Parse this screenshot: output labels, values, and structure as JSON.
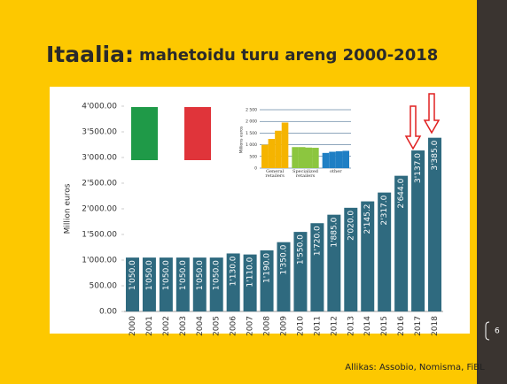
{
  "title_main": "Itaalia:",
  "title_rest": "mahetoidu turu areng 2000-2018",
  "source": "Allikas: Assobio, Nomisma, FiBL",
  "page_number": 6,
  "chart_data": [
    {
      "type": "bar",
      "y_axis_label": "Million euros",
      "categories": [
        "2000",
        "2001",
        "2002",
        "2003",
        "2004",
        "2005",
        "2006",
        "2007",
        "2008",
        "2009",
        "2010",
        "2011",
        "2012",
        "2013",
        "2014",
        "2015",
        "2016",
        "2017",
        "2018"
      ],
      "values": [
        1050,
        1050,
        1050,
        1050,
        1050,
        1050,
        1130,
        1110,
        1190,
        1350,
        1550,
        1720,
        1885,
        2020,
        2145.2,
        2317,
        2644,
        3137,
        3385
      ],
      "value_labels": [
        "1'050.0",
        "1'050.0",
        "1'050.0",
        "1'050.0",
        "1'050.0",
        "1'050.0",
        "1'130.0",
        "1'110.0",
        "1'190.0",
        "1'350.0",
        "1'550.0",
        "1'720.0",
        "1'885.0",
        "2'020.0",
        "2'145.2",
        "2'317.0",
        "2'644.0",
        "3'137.0",
        "3'385.0"
      ],
      "color": "#2f6a7f",
      "ylim": [
        0,
        4000
      ],
      "yticks": [
        {
          "value": 0,
          "label": "0.00"
        },
        {
          "value": 500,
          "label": "500.00"
        },
        {
          "value": 1000,
          "label": "1'000.00"
        },
        {
          "value": 1500,
          "label": "1'500.00"
        },
        {
          "value": 2000,
          "label": "2'000.00"
        },
        {
          "value": 2500,
          "label": "2'500.00"
        },
        {
          "value": 3000,
          "label": "3'000.00"
        },
        {
          "value": 3500,
          "label": "3'500.00"
        },
        {
          "value": 4000,
          "label": "4'000.00"
        }
      ],
      "grid": false
    },
    {
      "type": "grouped_bar",
      "y_axis_label": "Millions euros",
      "groups": [
        {
          "label": "General retailers",
          "color": "#f5b400",
          "values": [
            1000,
            1250,
            1600,
            1950
          ]
        },
        {
          "label": "Specialized retailers",
          "color": "#8cc63f",
          "values": [
            900,
            900,
            880,
            870
          ]
        },
        {
          "label": "other",
          "color": "#1f7fc4",
          "values": [
            650,
            700,
            720,
            740
          ]
        }
      ],
      "ylim": [
        0,
        2500
      ],
      "yticks": [
        0,
        500,
        {
          "value": 1000,
          "label": "1 000"
        },
        {
          "value": 1500,
          "label": "1 500"
        },
        {
          "value": 2000,
          "label": "2 000"
        },
        {
          "value": 2500,
          "label": "2 500"
        }
      ],
      "grid": true
    }
  ]
}
